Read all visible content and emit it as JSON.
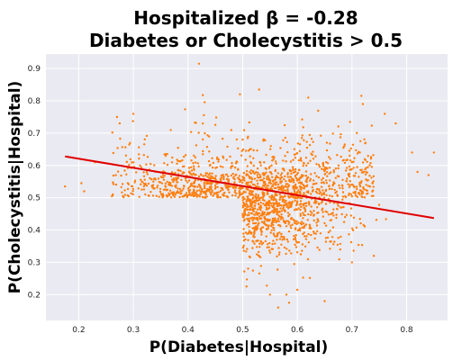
{
  "chart_data": {
    "type": "scatter",
    "title_line1": "Hospitalized β = -0.28",
    "title_line2": "Diabetes or Cholecystitis > 0.5",
    "xlabel": "P(Diabetes|Hospital)",
    "ylabel": "P(Cholecystitis|Hospital)",
    "xlim": [
      0.14,
      0.875
    ],
    "ylim": [
      0.12,
      0.945
    ],
    "xticks": [
      0.2,
      0.3,
      0.4,
      0.5,
      0.6,
      0.7,
      0.8
    ],
    "yticks": [
      0.2,
      0.3,
      0.4,
      0.5,
      0.6,
      0.7,
      0.8,
      0.9
    ],
    "grid": true,
    "point_color": "#ff7f0e",
    "line_color": "#e00000",
    "plot_bg": "#eaeaf2",
    "regression_line": {
      "x": [
        0.175,
        0.85
      ],
      "y": [
        0.628,
        0.437
      ]
    },
    "outliers": [
      {
        "x": 0.42,
        "y": 0.915
      },
      {
        "x": 0.62,
        "y": 0.81
      },
      {
        "x": 0.53,
        "y": 0.835
      },
      {
        "x": 0.495,
        "y": 0.82
      },
      {
        "x": 0.175,
        "y": 0.535
      },
      {
        "x": 0.205,
        "y": 0.545
      },
      {
        "x": 0.21,
        "y": 0.52
      },
      {
        "x": 0.23,
        "y": 0.61
      },
      {
        "x": 0.27,
        "y": 0.75
      },
      {
        "x": 0.275,
        "y": 0.73
      },
      {
        "x": 0.3,
        "y": 0.76
      },
      {
        "x": 0.78,
        "y": 0.73
      },
      {
        "x": 0.81,
        "y": 0.64
      },
      {
        "x": 0.82,
        "y": 0.58
      },
      {
        "x": 0.84,
        "y": 0.57
      },
      {
        "x": 0.85,
        "y": 0.64
      },
      {
        "x": 0.58,
        "y": 0.2
      },
      {
        "x": 0.585,
        "y": 0.175
      },
      {
        "x": 0.565,
        "y": 0.16
      },
      {
        "x": 0.55,
        "y": 0.2
      },
      {
        "x": 0.6,
        "y": 0.215
      },
      {
        "x": 0.65,
        "y": 0.18
      },
      {
        "x": 0.7,
        "y": 0.3
      },
      {
        "x": 0.74,
        "y": 0.32
      },
      {
        "x": 0.76,
        "y": 0.76
      },
      {
        "x": 0.72,
        "y": 0.79
      }
    ],
    "cluster_summary": {
      "upper_band": {
        "x_range": [
          0.26,
          0.74
        ],
        "y_range": [
          0.5,
          0.8
        ],
        "y_center": 0.56
      },
      "lower_band": {
        "x_range": [
          0.5,
          0.8
        ],
        "y_range": [
          0.22,
          0.5
        ],
        "y_center": 0.43
      }
    }
  }
}
